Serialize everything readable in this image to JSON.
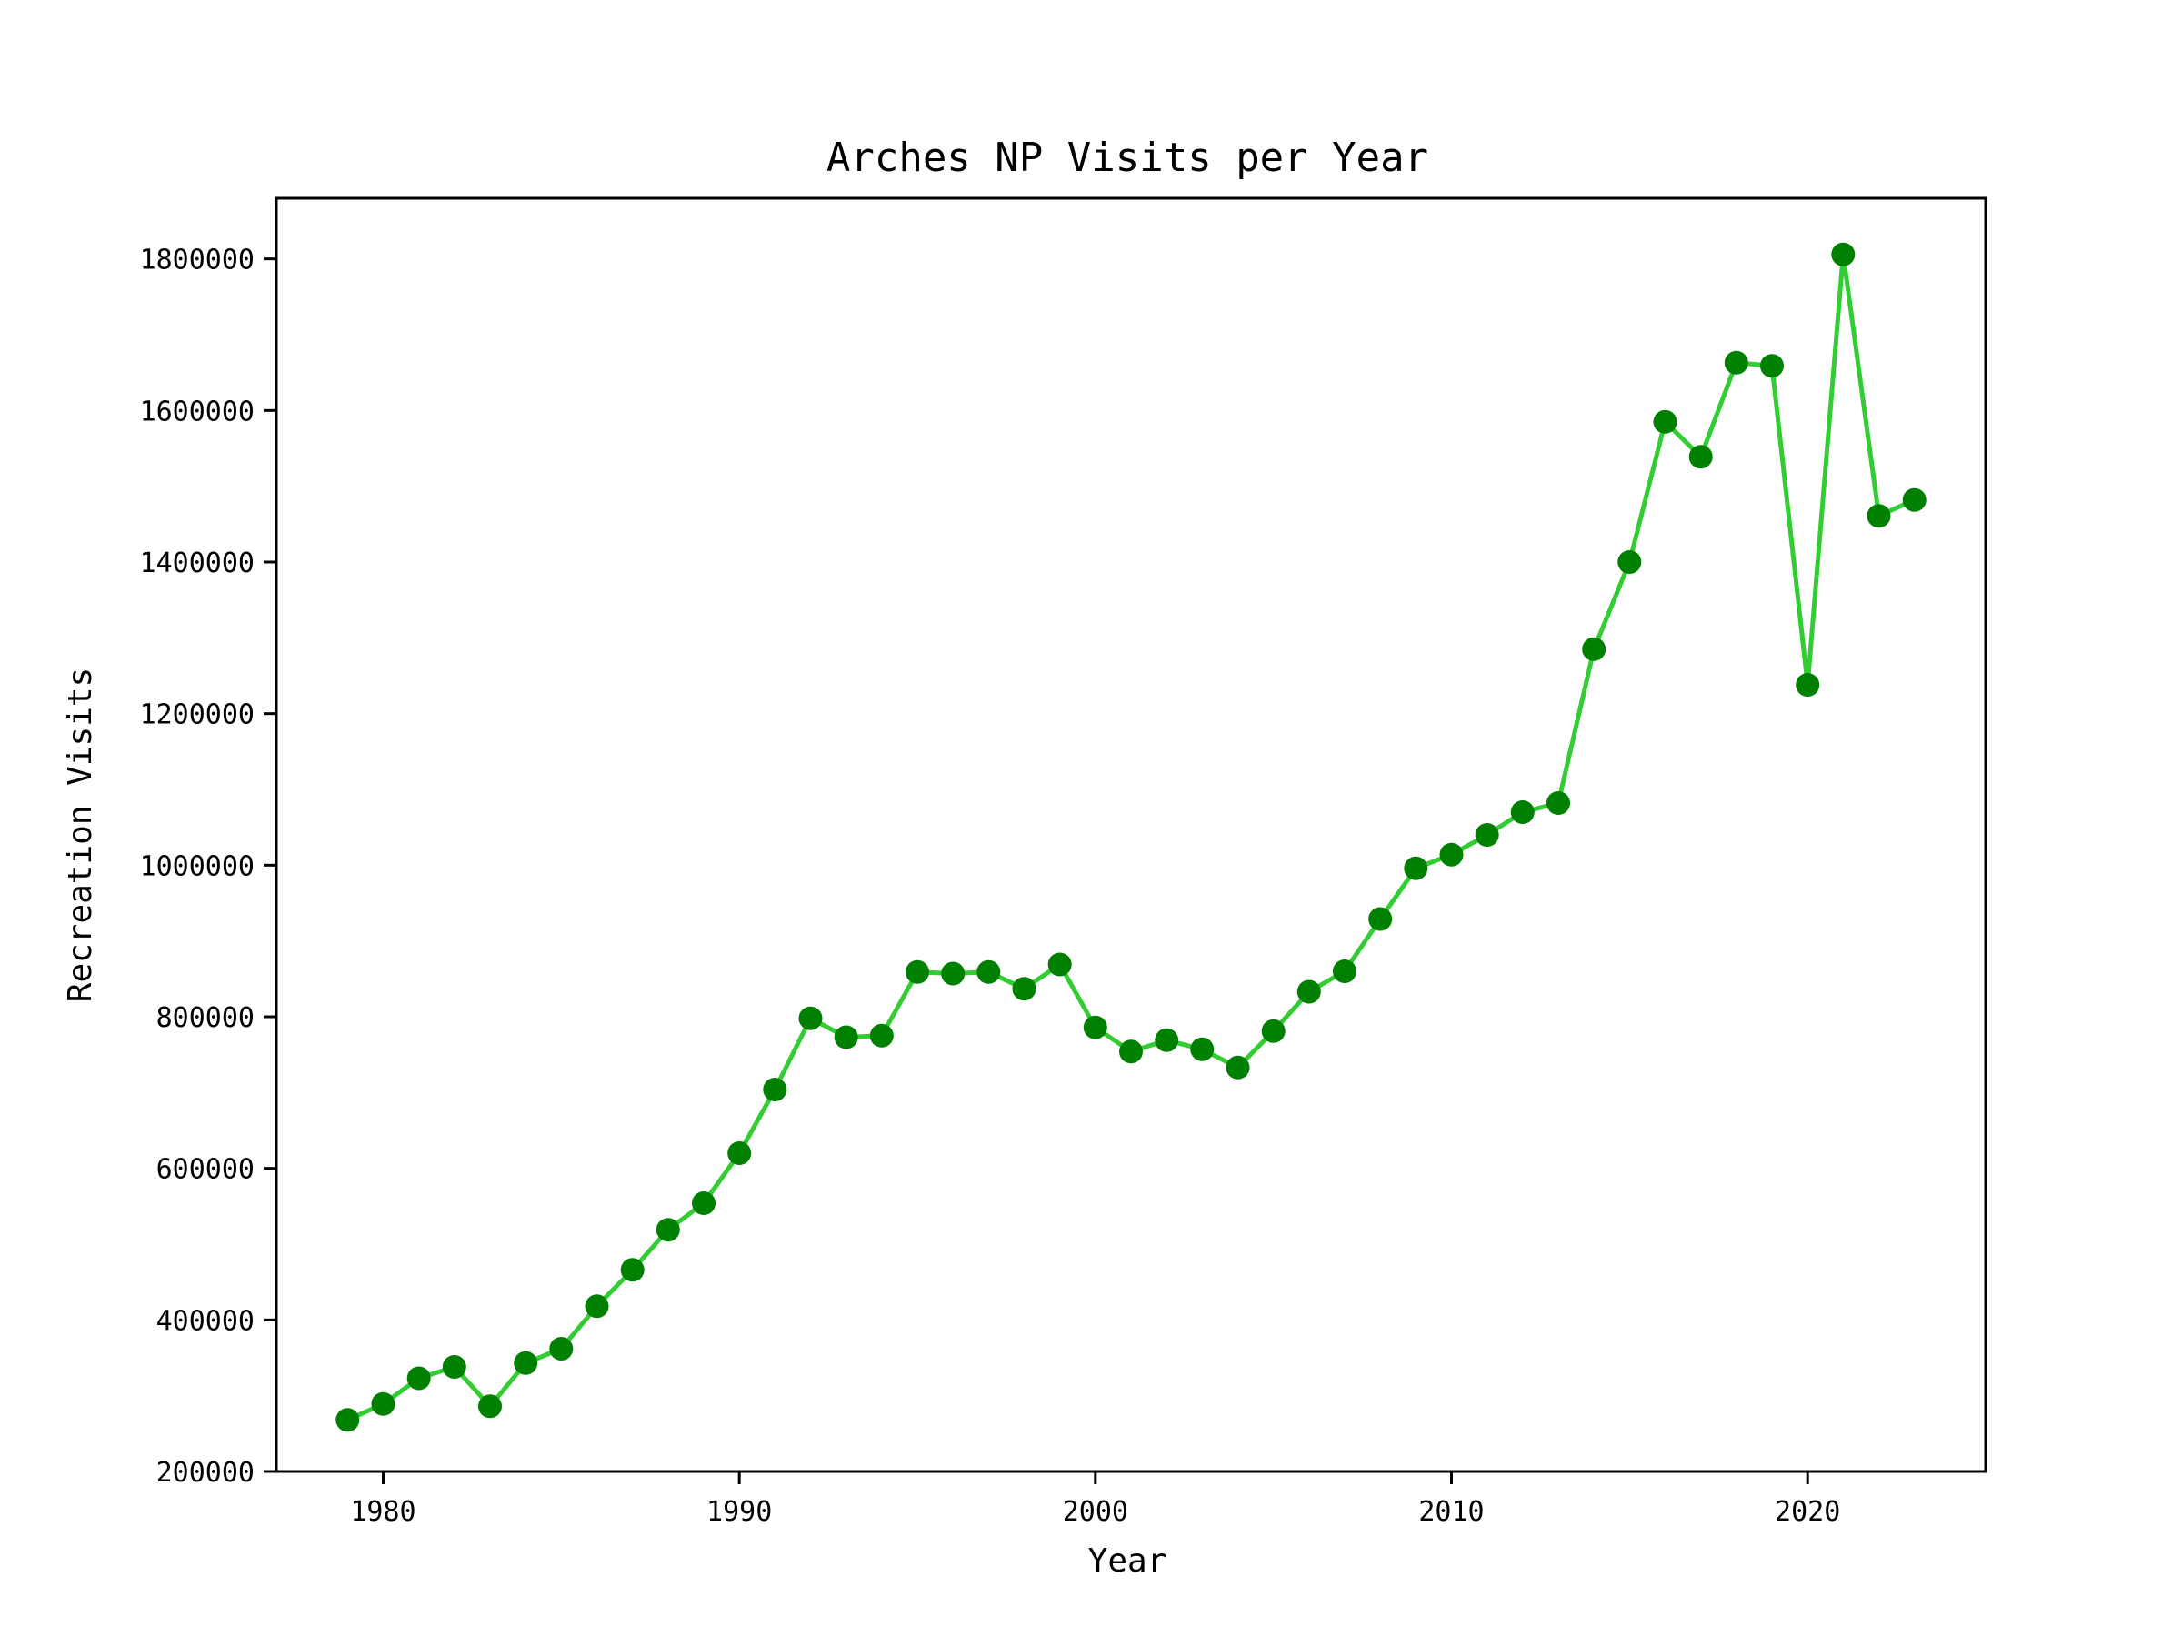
{
  "chart_data": {
    "type": "line",
    "title": "Arches NP Visits per Year",
    "xlabel": "Year",
    "ylabel": "Recreation Visits",
    "xlim": [
      1977,
      2025
    ],
    "ylim": [
      200000,
      1880000
    ],
    "x_ticks": [
      1980,
      1990,
      2000,
      2010,
      2020
    ],
    "y_ticks": [
      200000,
      400000,
      600000,
      800000,
      1000000,
      1200000,
      1400000,
      1600000,
      1800000
    ],
    "x": [
      1979,
      1980,
      1981,
      1982,
      1983,
      1984,
      1985,
      1986,
      1987,
      1988,
      1989,
      1990,
      1991,
      1992,
      1993,
      1994,
      1995,
      1996,
      1997,
      1998,
      1999,
      2000,
      2001,
      2002,
      2003,
      2004,
      2005,
      2006,
      2007,
      2008,
      2009,
      2010,
      2011,
      2012,
      2013,
      2014,
      2015,
      2016,
      2017,
      2018,
      2019,
      2020,
      2021,
      2022,
      2023
    ],
    "series": [
      {
        "values": [
          268000,
          289000,
          323000,
          338000,
          286000,
          343000,
          362000,
          418000,
          466000,
          519000,
          554000,
          620000,
          704000,
          798000,
          773000,
          775000,
          859000,
          857000,
          859000,
          837000,
          869000,
          786000,
          754000,
          769000,
          757000,
          733000,
          781000,
          833000,
          860000,
          929000,
          996000,
          1014000,
          1040000,
          1070000,
          1082000,
          1285000,
          1400000,
          1585000,
          1539000,
          1663000,
          1659000,
          1238000,
          1806000,
          1461000,
          1482000
        ]
      }
    ],
    "line_color": "#32cd32",
    "marker_color": "#008000",
    "grid": false,
    "legend": "none"
  }
}
